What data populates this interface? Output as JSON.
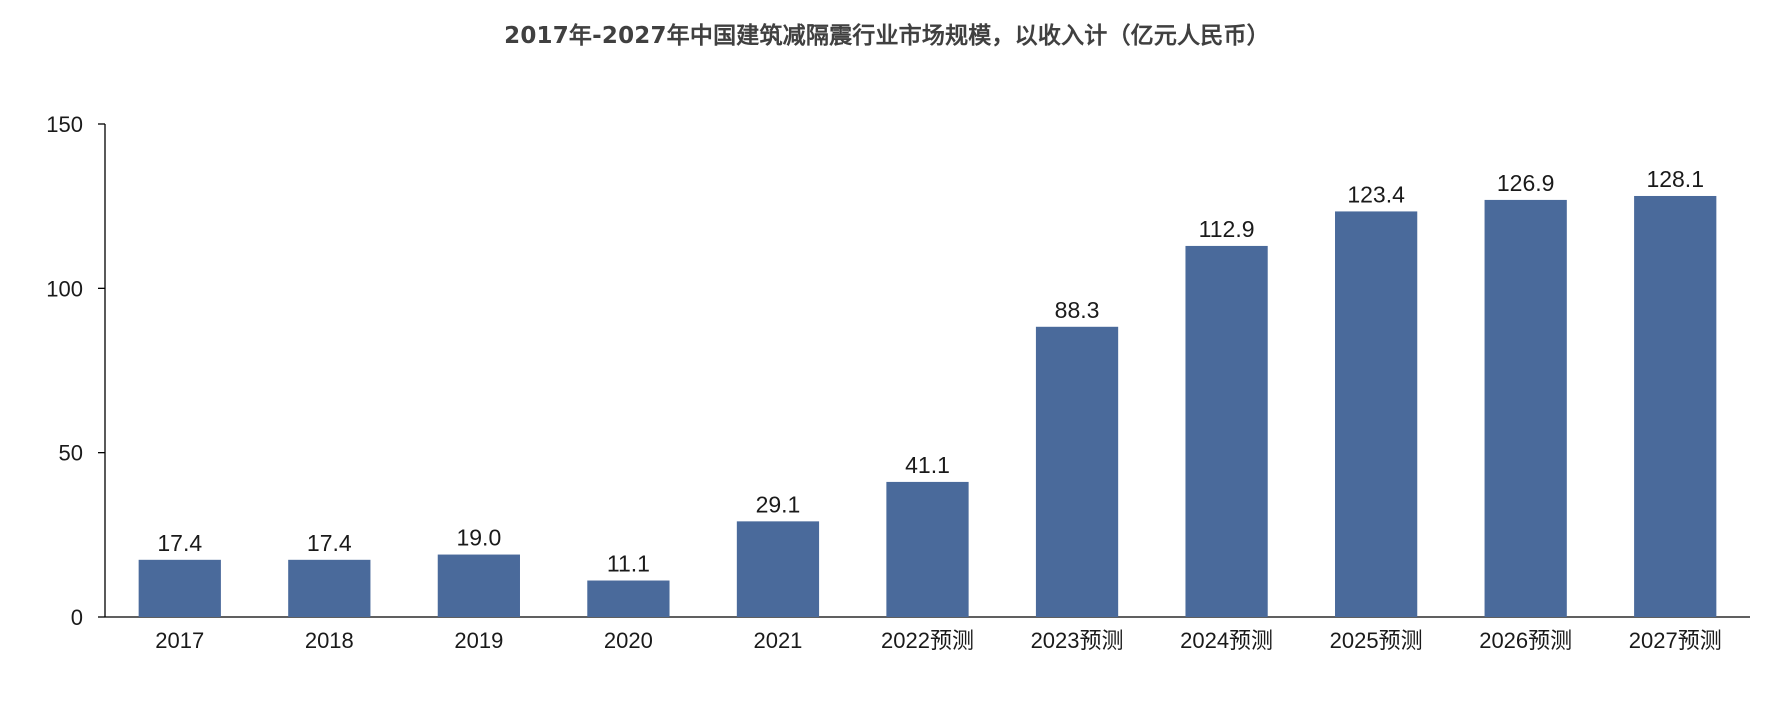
{
  "chart_data": {
    "type": "bar",
    "title": "2017年-2027年中国建筑减隔震行业市场规模，以收入计（亿元人民币）",
    "categories": [
      "2017",
      "2018",
      "2019",
      "2020",
      "2021",
      "2022预测",
      "2023预测",
      "2024预测",
      "2025预测",
      "2026预测",
      "2027预测"
    ],
    "series": [
      {
        "values": [
          17.4,
          17.4,
          19.0,
          11.1,
          29.1,
          41.1,
          88.3,
          112.9,
          123.4,
          126.9,
          128.1
        ]
      }
    ],
    "data_labels": [
      "17.4",
      "17.4",
      "19.0",
      "11.1",
      "29.1",
      "41.1",
      "88.3",
      "112.9",
      "123.4",
      "126.9",
      "128.1"
    ],
    "ylim": [
      0,
      150
    ],
    "yticks": [
      0,
      50,
      100,
      150
    ],
    "ytick_labels": [
      "0",
      "50",
      "100",
      "150"
    ],
    "xlabel": "",
    "ylabel": "",
    "grid": false,
    "legend": "none",
    "colors": {
      "bar": "#4a6a9b",
      "axis": "#000000",
      "title": "#404040",
      "text": "#1a1a1a"
    }
  }
}
